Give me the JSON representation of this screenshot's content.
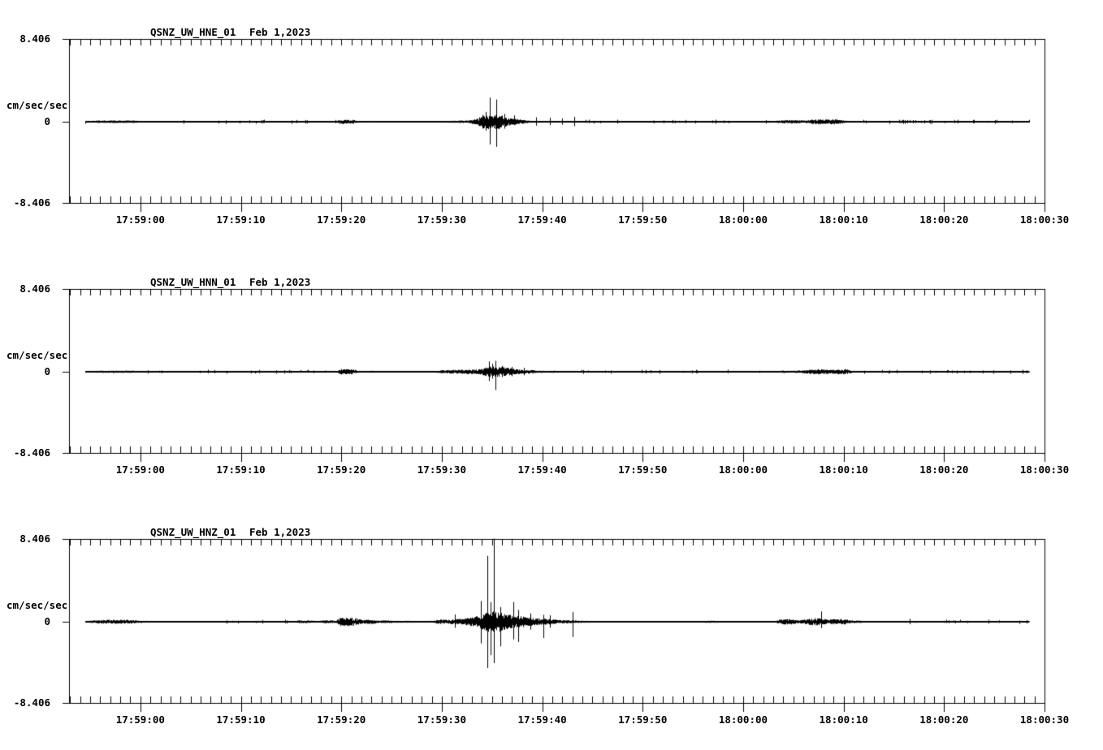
{
  "page": {
    "background": "#ffffff",
    "ink": "#000000"
  },
  "time_axis": {
    "span_s": 97.1,
    "minor_first_s": 0.1,
    "minor_interval_s": 1,
    "major_first_s": 7.1,
    "major_interval_s": 10,
    "trace_start_s": 1.6,
    "trace_end_s": 95.6,
    "major_tick_labels": [
      "17:59:00",
      "17:59:10",
      "17:59:20",
      "17:59:30",
      "17:59:40",
      "17:59:50",
      "18:00:00",
      "18:00:10",
      "18:00:20",
      "18:00:30"
    ]
  },
  "chart_data": [
    {
      "type": "line",
      "station_title": "QSNZ_UW_HNE_01",
      "date_label": "Feb 1,2023",
      "ylabel": "cm/sec/sec",
      "y_max_label": "8.406",
      "y_zero_label": "0",
      "y_min_label": "-8.406",
      "ylim": [
        -8.406,
        8.406
      ],
      "envelope_t_amp": [
        [
          1.6,
          0.04
        ],
        [
          2.4,
          0.1
        ],
        [
          3.0,
          0.13
        ],
        [
          6.5,
          0.12
        ],
        [
          7.4,
          0.06
        ],
        [
          8.5,
          0.035
        ],
        [
          26.5,
          0.035
        ],
        [
          26.9,
          0.22
        ],
        [
          28.3,
          0.2
        ],
        [
          28.9,
          0.06
        ],
        [
          30.0,
          0.1
        ],
        [
          30.7,
          0.05
        ],
        [
          32.4,
          0.08
        ],
        [
          33.6,
          0.05
        ],
        [
          35.4,
          0.08
        ],
        [
          36.5,
          0.06
        ],
        [
          38.0,
          0.1
        ],
        [
          39.6,
          0.14
        ],
        [
          40.6,
          0.3
        ],
        [
          41.2,
          0.75
        ],
        [
          42.9,
          0.75
        ],
        [
          43.6,
          0.4
        ],
        [
          44.6,
          0.28
        ],
        [
          45.7,
          0.12
        ],
        [
          47.0,
          0.07
        ],
        [
          50.6,
          0.06
        ],
        [
          51.6,
          0.035
        ],
        [
          69.9,
          0.035
        ],
        [
          70.8,
          0.16
        ],
        [
          72.0,
          0.18
        ],
        [
          73.4,
          0.15
        ],
        [
          74.2,
          0.26
        ],
        [
          76.3,
          0.26
        ],
        [
          77.4,
          0.1
        ],
        [
          78.6,
          0.04
        ],
        [
          95.6,
          0.035
        ]
      ],
      "spikes_t_up_down": [
        [
          41.45,
          1.0,
          0.9
        ],
        [
          41.9,
          2.45,
          2.3
        ],
        [
          42.55,
          2.25,
          2.55
        ],
        [
          43.3,
          0.8,
          0.7
        ],
        [
          44.3,
          0.65,
          0.35
        ],
        [
          46.5,
          0.45,
          0.4
        ],
        [
          47.9,
          0.4,
          0.35
        ],
        [
          49.1,
          0.35,
          0.3
        ],
        [
          50.3,
          0.5,
          0.45
        ]
      ]
    },
    {
      "type": "line",
      "station_title": "QSNZ_UW_HNN_01",
      "date_label": "Feb 1,2023",
      "ylabel": "cm/sec/sec",
      "y_max_label": "8.406",
      "y_zero_label": "0",
      "y_min_label": "-8.406",
      "ylim": [
        -8.406,
        8.406
      ],
      "envelope_t_amp": [
        [
          1.6,
          0.04
        ],
        [
          2.8,
          0.1
        ],
        [
          3.5,
          0.12
        ],
        [
          6.3,
          0.11
        ],
        [
          7.1,
          0.05
        ],
        [
          8.2,
          0.035
        ],
        [
          26.6,
          0.035
        ],
        [
          27.0,
          0.28
        ],
        [
          28.3,
          0.26
        ],
        [
          28.9,
          0.06
        ],
        [
          30.2,
          0.1
        ],
        [
          30.9,
          0.045
        ],
        [
          33.4,
          0.08
        ],
        [
          34.2,
          0.045
        ],
        [
          36.3,
          0.05
        ],
        [
          37.0,
          0.18
        ],
        [
          38.6,
          0.2
        ],
        [
          40.0,
          0.24
        ],
        [
          41.0,
          0.3
        ],
        [
          41.6,
          0.5
        ],
        [
          42.4,
          0.55
        ],
        [
          43.4,
          0.45
        ],
        [
          44.6,
          0.25
        ],
        [
          45.9,
          0.18
        ],
        [
          46.9,
          0.12
        ],
        [
          47.6,
          0.08
        ],
        [
          48.3,
          0.12
        ],
        [
          49.1,
          0.06
        ],
        [
          50.6,
          0.04
        ],
        [
          63.4,
          0.035
        ],
        [
          64.0,
          0.09
        ],
        [
          64.7,
          0.035
        ],
        [
          70.4,
          0.035
        ],
        [
          71.0,
          0.12
        ],
        [
          72.1,
          0.1
        ],
        [
          73.3,
          0.18
        ],
        [
          74.5,
          0.28
        ],
        [
          75.4,
          0.24
        ],
        [
          76.1,
          0.2
        ],
        [
          76.6,
          0.27
        ],
        [
          77.4,
          0.26
        ],
        [
          78.0,
          0.1
        ],
        [
          78.9,
          0.04
        ],
        [
          95.6,
          0.035
        ]
      ],
      "spikes_t_up_down": [
        [
          41.8,
          1.05,
          0.95
        ],
        [
          42.15,
          0.8,
          0.7
        ],
        [
          42.45,
          1.1,
          1.85
        ],
        [
          43.1,
          0.6,
          0.55
        ],
        [
          44.1,
          0.5,
          0.45
        ],
        [
          45.3,
          0.4,
          0.35
        ]
      ]
    },
    {
      "type": "line",
      "station_title": "QSNZ_UW_HNZ_01",
      "date_label": "Feb 1,2023",
      "ylabel": "cm/sec/sec",
      "y_max_label": "8.406",
      "y_zero_label": "0",
      "y_min_label": "-8.406",
      "ylim": [
        -8.406,
        8.406
      ],
      "envelope_t_amp": [
        [
          1.6,
          0.06
        ],
        [
          2.4,
          0.16
        ],
        [
          3.0,
          0.2
        ],
        [
          6.0,
          0.2
        ],
        [
          7.0,
          0.12
        ],
        [
          8.4,
          0.08
        ],
        [
          9.2,
          0.05
        ],
        [
          14.4,
          0.05
        ],
        [
          15.5,
          0.035
        ],
        [
          22.4,
          0.04
        ],
        [
          22.8,
          0.15
        ],
        [
          24.1,
          0.13
        ],
        [
          24.8,
          0.06
        ],
        [
          25.2,
          0.14
        ],
        [
          26.6,
          0.14
        ],
        [
          27.0,
          0.45
        ],
        [
          28.4,
          0.42
        ],
        [
          29.2,
          0.2
        ],
        [
          30.1,
          0.22
        ],
        [
          30.9,
          0.12
        ],
        [
          31.8,
          0.17
        ],
        [
          32.4,
          0.1
        ],
        [
          33.8,
          0.1
        ],
        [
          35.1,
          0.08
        ],
        [
          36.2,
          0.1
        ],
        [
          36.9,
          0.24
        ],
        [
          37.7,
          0.2
        ],
        [
          38.5,
          0.28
        ],
        [
          39.3,
          0.34
        ],
        [
          40.1,
          0.45
        ],
        [
          40.7,
          0.6
        ],
        [
          41.3,
          0.95
        ],
        [
          41.9,
          1.05
        ],
        [
          42.7,
          1.05
        ],
        [
          43.5,
          0.8
        ],
        [
          44.3,
          0.62
        ],
        [
          45.1,
          0.55
        ],
        [
          45.9,
          0.45
        ],
        [
          46.7,
          0.35
        ],
        [
          47.5,
          0.3
        ],
        [
          48.3,
          0.22
        ],
        [
          49.1,
          0.18
        ],
        [
          50.1,
          0.15
        ],
        [
          50.9,
          0.12
        ],
        [
          52.1,
          0.08
        ],
        [
          53.1,
          0.06
        ],
        [
          62.4,
          0.05
        ],
        [
          63.3,
          0.1
        ],
        [
          64.1,
          0.12
        ],
        [
          64.9,
          0.08
        ],
        [
          66.1,
          0.06
        ],
        [
          67.6,
          0.08
        ],
        [
          68.6,
          0.06
        ],
        [
          70.2,
          0.08
        ],
        [
          70.9,
          0.28
        ],
        [
          71.9,
          0.28
        ],
        [
          72.6,
          0.15
        ],
        [
          73.4,
          0.28
        ],
        [
          74.1,
          0.38
        ],
        [
          74.9,
          0.33
        ],
        [
          75.6,
          0.24
        ],
        [
          76.3,
          0.28
        ],
        [
          77.1,
          0.3
        ],
        [
          77.9,
          0.15
        ],
        [
          78.9,
          0.1
        ],
        [
          80.1,
          0.08
        ],
        [
          81.6,
          0.06
        ],
        [
          83.1,
          0.05
        ],
        [
          84.4,
          0.1
        ],
        [
          84.9,
          0.05
        ],
        [
          88.1,
          0.04
        ],
        [
          95.6,
          0.035
        ]
      ],
      "spikes_t_up_down": [
        [
          38.4,
          0.74,
          0.62
        ],
        [
          41.0,
          2.1,
          2.2
        ],
        [
          41.6,
          6.7,
          4.7
        ],
        [
          42.0,
          2.0,
          3.4
        ],
        [
          42.3,
          8.45,
          4.2
        ],
        [
          42.9,
          1.5,
          2.5
        ],
        [
          44.2,
          2.0,
          1.8
        ],
        [
          44.75,
          1.2,
          2.05
        ],
        [
          45.9,
          0.85,
          0.8
        ],
        [
          47.2,
          0.7,
          1.65
        ],
        [
          47.85,
          0.65,
          0.6
        ],
        [
          50.1,
          1.0,
          1.55
        ],
        [
          74.9,
          1.05,
          0.65
        ],
        [
          83.7,
          0.3,
          0.25
        ]
      ]
    }
  ]
}
